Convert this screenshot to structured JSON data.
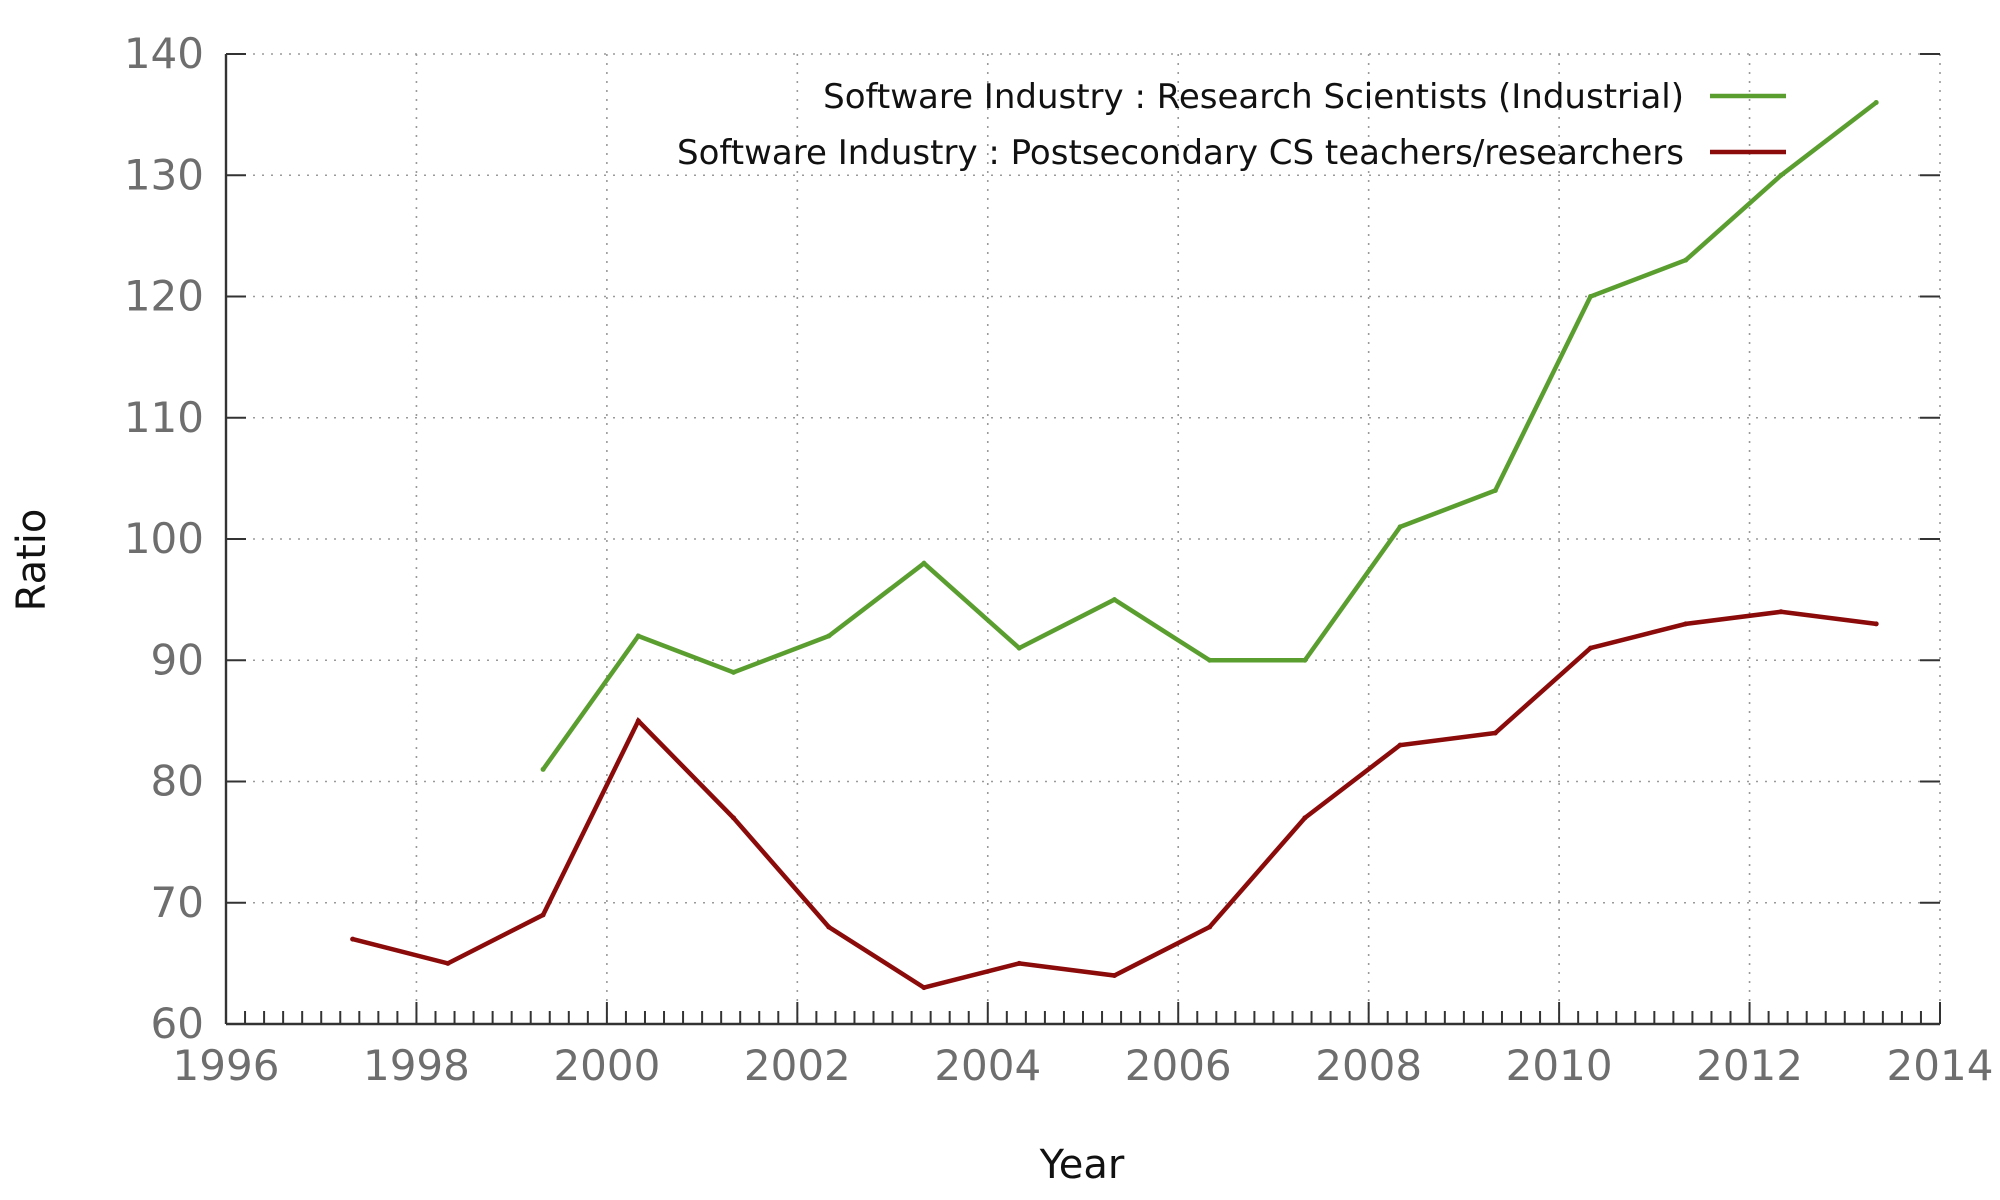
{
  "chart_data": {
    "type": "line",
    "title": "",
    "xlabel": "Year",
    "ylabel": "Ratio",
    "xlim": [
      1996,
      2014
    ],
    "ylim": [
      60,
      140
    ],
    "x_ticks": [
      1996,
      1998,
      2000,
      2002,
      2004,
      2006,
      2008,
      2010,
      2012,
      2014
    ],
    "x_minor_step": 0.2,
    "y_ticks": [
      60,
      70,
      80,
      90,
      100,
      110,
      120,
      130,
      140
    ],
    "grid": true,
    "legend_position": "top-right",
    "series": [
      {
        "name": "Software Industry : Research Scientists (Industrial)",
        "color": "#5a9e2f",
        "x": [
          1999.33,
          2000.33,
          2001.33,
          2002.33,
          2003.33,
          2004.33,
          2005.33,
          2006.33,
          2007.33,
          2008.33,
          2009.33,
          2010.33,
          2011.33,
          2012.33,
          2013.33
        ],
        "values": [
          81,
          92,
          89,
          92,
          98,
          91,
          95,
          90,
          90,
          101,
          104,
          120,
          123,
          130,
          136
        ]
      },
      {
        "name": "Software Industry : Postsecondary CS teachers/researchers",
        "color": "#8b0a0a",
        "x": [
          1997.33,
          1998.33,
          1999.33,
          2000.33,
          2001.33,
          2002.33,
          2003.33,
          2004.33,
          2005.33,
          2006.33,
          2007.33,
          2008.33,
          2009.33,
          2010.33,
          2011.33,
          2012.33,
          2013.33
        ],
        "values": [
          67,
          65,
          69,
          85,
          77,
          68,
          63,
          65,
          64,
          68,
          77,
          83,
          84,
          91,
          93,
          94,
          93
        ]
      }
    ]
  }
}
